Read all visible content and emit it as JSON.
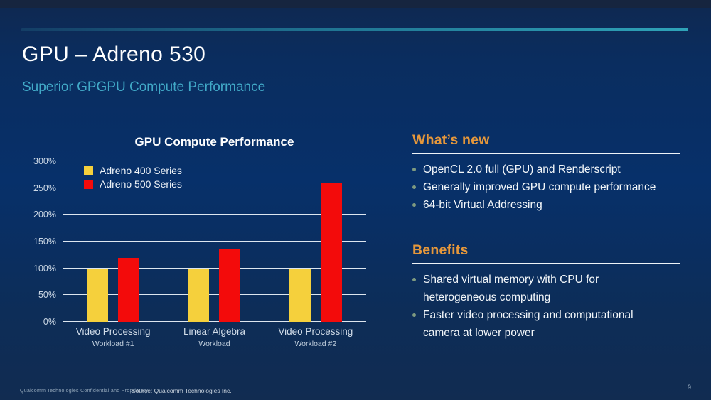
{
  "slide": {
    "title": "GPU – Adreno 530",
    "subtitle": "Superior GPGPU Compute Performance",
    "page_number": "9",
    "footer_confidential": "Qualcomm Technologies Confidential and Proprietary",
    "footer_source": "Source: Qualcomm Technologies Inc."
  },
  "chart_data": {
    "type": "bar",
    "title": "GPU Compute Performance",
    "categories": [
      {
        "label": "Video Processing",
        "sublabel": "Workload #1"
      },
      {
        "label": "Linear Algebra",
        "sublabel": "Workload"
      },
      {
        "label": "Video Processing",
        "sublabel": "Workload #2"
      }
    ],
    "series": [
      {
        "name": "Adreno 400 Series",
        "color": "#f5d03c",
        "values": [
          100,
          100,
          100
        ]
      },
      {
        "name": "Adreno 500 Series",
        "color": "#f30b0b",
        "values": [
          120,
          135,
          260
        ]
      }
    ],
    "xlabel": "",
    "ylabel": "",
    "ylim": [
      0,
      300
    ],
    "ytick_step": 50,
    "ytick_format": "percent",
    "grid": true,
    "legend_position": "top-left"
  },
  "whats_new": {
    "heading": "What’s new",
    "items": [
      "OpenCL 2.0 full (GPU) and Renderscript",
      "Generally improved GPU compute performance",
      "64-bit Virtual Addressing"
    ]
  },
  "benefits": {
    "heading": "Benefits",
    "items": [
      "Shared virtual memory with CPU for\nheterogeneous computing",
      "Faster video processing and computational\ncamera at lower power"
    ]
  },
  "colors": {
    "accent_teal": "#2fa3b8",
    "heading_orange": "#e5973b",
    "series_yellow": "#f5d03c",
    "series_red": "#f30b0b",
    "background_navy": "#07306a"
  }
}
